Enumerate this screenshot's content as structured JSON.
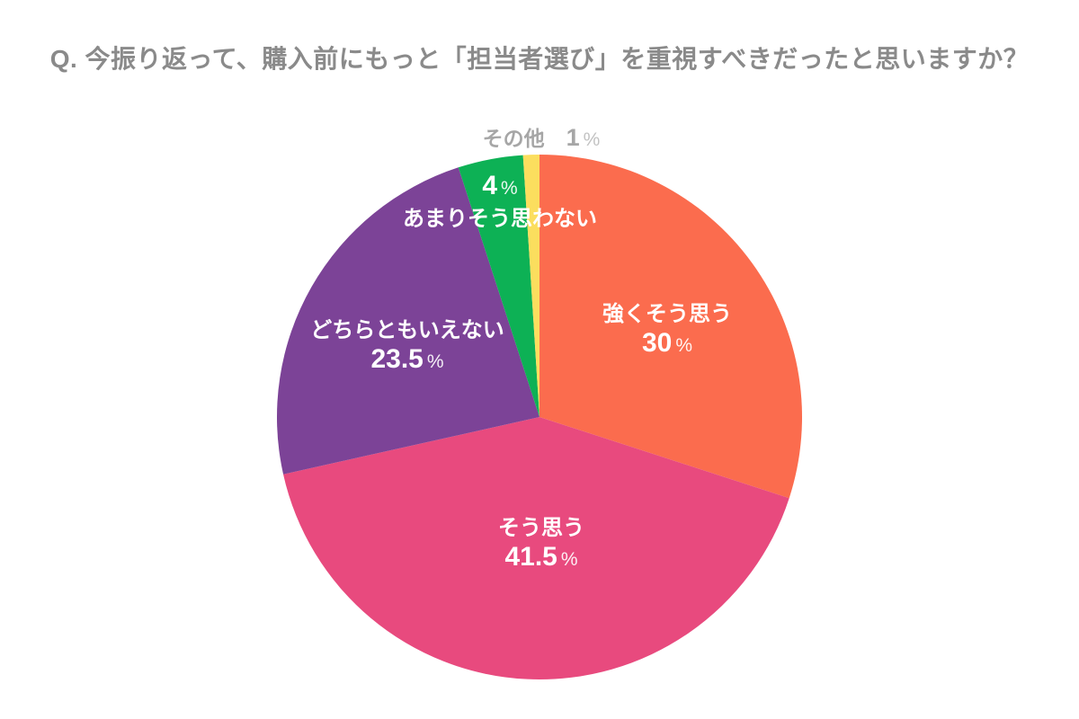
{
  "title": "Q. 今振り返って、購入前にもっと「担当者選び」を重視すべきだったと思いますか？",
  "percent_sign": "%",
  "chart_data": {
    "type": "pie",
    "title": "Q. 今振り返って、購入前にもっと「担当者選び」を重視すべきだったと思いますか？",
    "start_angle_deg": 0,
    "direction": "clockwise",
    "legend": "none",
    "slices": [
      {
        "label": "強くそう思う",
        "value": 30,
        "pct": "30",
        "color": "#FB6C4E",
        "label_color": "#FFFFFF"
      },
      {
        "label": "そう思う",
        "value": 41.5,
        "pct": "41.5",
        "color": "#E84A7E",
        "label_color": "#FFFFFF"
      },
      {
        "label": "どちらともいえない",
        "value": 23.5,
        "pct": "23.5",
        "color": "#7C4397",
        "label_color": "#FFFFFF"
      },
      {
        "label": "あまりそう思わない",
        "value": 4,
        "pct": "4",
        "color": "#0DB155",
        "label_color": "#FFFFFF"
      },
      {
        "label": "その他",
        "value": 1,
        "pct": "1",
        "color": "#FBDE5E",
        "label_color": "#A6A6A6"
      }
    ]
  }
}
